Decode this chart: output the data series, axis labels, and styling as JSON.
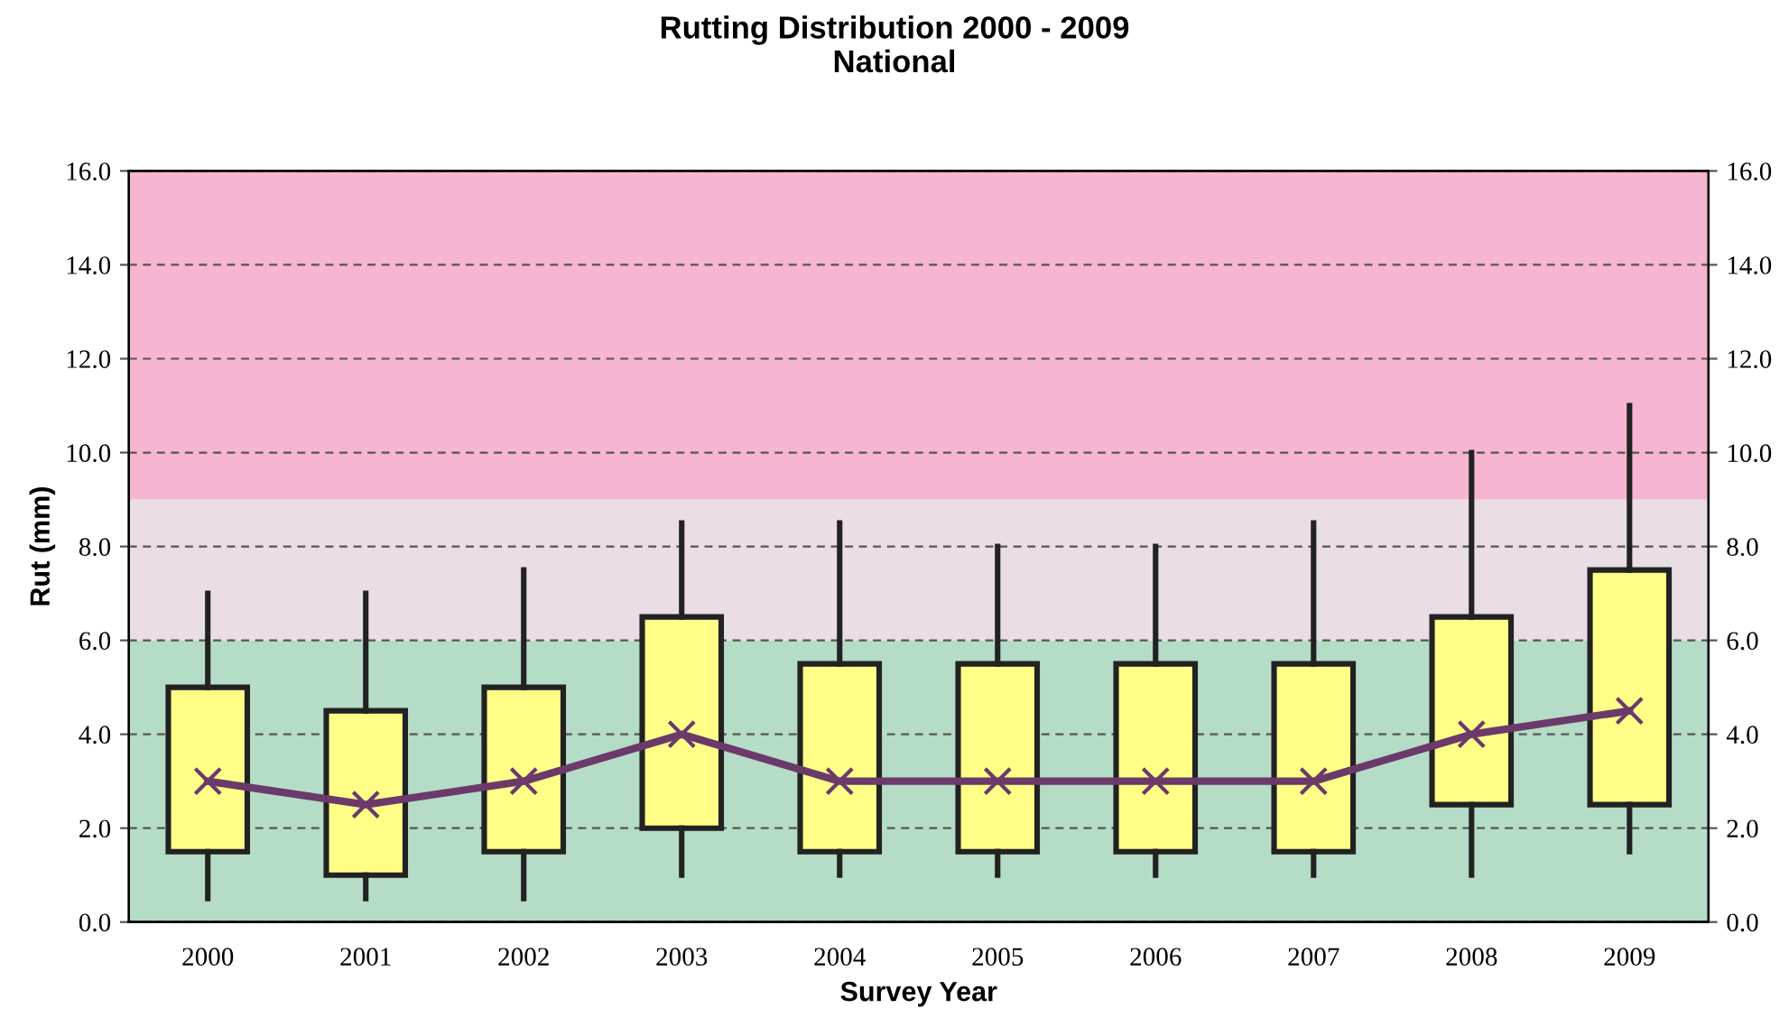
{
  "chart_data": {
    "type": "box",
    "title": "Rutting Distribution 2000 - 2009\nNational",
    "xlabel": "Survey Year",
    "ylabel": "Rut (mm)",
    "categories": [
      "2000",
      "2001",
      "2002",
      "2003",
      "2004",
      "2005",
      "2006",
      "2007",
      "2008",
      "2009"
    ],
    "boxes": [
      {
        "low": 0.5,
        "q1": 1.5,
        "median": 3.0,
        "q3": 5.0,
        "high": 7.0
      },
      {
        "low": 0.5,
        "q1": 1.0,
        "median": 2.5,
        "q3": 4.5,
        "high": 7.0
      },
      {
        "low": 0.5,
        "q1": 1.5,
        "median": 3.0,
        "q3": 5.0,
        "high": 7.5
      },
      {
        "low": 1.0,
        "q1": 2.0,
        "median": 4.0,
        "q3": 6.5,
        "high": 8.5
      },
      {
        "low": 1.0,
        "q1": 1.5,
        "median": 3.0,
        "q3": 5.5,
        "high": 8.5
      },
      {
        "low": 1.0,
        "q1": 1.5,
        "median": 3.0,
        "q3": 5.5,
        "high": 8.0
      },
      {
        "low": 1.0,
        "q1": 1.5,
        "median": 3.0,
        "q3": 5.5,
        "high": 8.0
      },
      {
        "low": 1.0,
        "q1": 1.5,
        "median": 3.0,
        "q3": 5.5,
        "high": 8.5
      },
      {
        "low": 1.0,
        "q1": 2.5,
        "median": 4.0,
        "q3": 6.5,
        "high": 10.0
      },
      {
        "low": 1.5,
        "q1": 2.5,
        "median": 4.5,
        "q3": 7.5,
        "high": 11.0
      }
    ],
    "color": "#ffff88",
    "marker": "cross",
    "series": [
      {
        "type": "line",
        "color": "#6b3a6b",
        "marker": "none",
        "values": [
          3.0,
          2.5,
          3.0,
          4.0,
          3.0,
          3.0,
          3.0,
          3.0,
          4.0,
          4.5
        ]
      }
    ],
    "ylim": [
      0,
      16
    ],
    "yticks": [
      {
        "value": 0,
        "label": "0.0"
      },
      {
        "value": 2,
        "label": "2.0"
      },
      {
        "value": 4,
        "label": "4.0"
      },
      {
        "value": 6,
        "label": "6.0"
      },
      {
        "value": 8,
        "label": "8.0"
      },
      {
        "value": 10,
        "label": "10.0"
      },
      {
        "value": 12,
        "label": "12.0"
      },
      {
        "value": 14,
        "label": "14.0"
      },
      {
        "value": 16,
        "label": "16.0"
      }
    ],
    "y2lim": [
      0,
      16
    ],
    "y2ticks": [
      {
        "value": 0,
        "label": "0.0"
      },
      {
        "value": 2,
        "label": "2.0"
      },
      {
        "value": 4,
        "label": "4.0"
      },
      {
        "value": 6,
        "label": "6.0"
      },
      {
        "value": 8,
        "label": "8.0"
      },
      {
        "value": 10,
        "label": "10.0"
      },
      {
        "value": 12,
        "label": "12.0"
      },
      {
        "value": 14,
        "label": "14.0"
      },
      {
        "value": 16,
        "label": "16.0"
      }
    ],
    "bands": [
      {
        "axis": "y",
        "from": 0,
        "to": 6,
        "color": "#b5dcc6"
      },
      {
        "axis": "y",
        "from": 6,
        "to": 9,
        "color": "#eadde6"
      },
      {
        "axis": "y",
        "from": 9,
        "to": 16,
        "color": "#f6b5d0"
      }
    ],
    "grid": "y"
  }
}
